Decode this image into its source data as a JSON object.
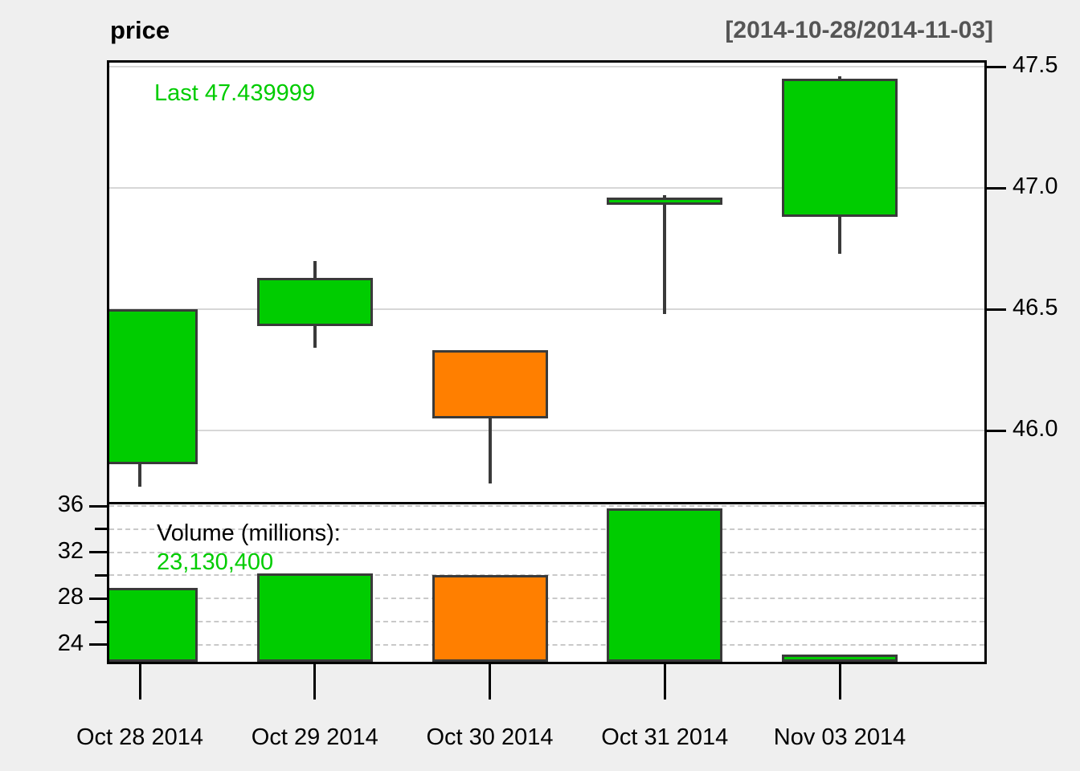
{
  "header": {
    "title": "price",
    "date_range": "[2014-10-28/2014-11-03]"
  },
  "annotations": {
    "last_price_label": "Last 47.439999",
    "volume_label": "Volume (millions):",
    "volume_value": "23,130,400"
  },
  "chart_data": {
    "type": "candlestick_with_volume",
    "title": "price",
    "date_range_label": "[2014-10-28/2014-11-03]",
    "categories": [
      "Oct 28 2014",
      "Oct 29 2014",
      "Oct 30 2014",
      "Oct 31 2014",
      "Nov 03 2014"
    ],
    "ohlc": [
      {
        "date": "Oct 28 2014",
        "open": 45.87,
        "high": 46.5,
        "low": 45.77,
        "close": 46.49
      },
      {
        "date": "Oct 29 2014",
        "open": 46.44,
        "high": 46.7,
        "low": 46.34,
        "close": 46.62
      },
      {
        "date": "Oct 30 2014",
        "open": 46.32,
        "high": 46.32,
        "low": 45.78,
        "close": 46.06
      },
      {
        "date": "Oct 31 2014",
        "open": 46.94,
        "high": 46.97,
        "low": 46.48,
        "close": 46.95
      },
      {
        "date": "Nov 03 2014",
        "open": 46.89,
        "high": 47.46,
        "low": 46.73,
        "close": 47.44
      }
    ],
    "volume_millions": [
      28.9,
      30.2,
      30.0,
      35.8,
      23.13
    ],
    "last_price": 47.439999,
    "last_volume": 23130400,
    "price_axis": {
      "side": "right",
      "ticks": [
        "47.5",
        "47.0",
        "46.5",
        "46.0"
      ],
      "range": [
        45.71,
        47.53
      ],
      "grid": "solid"
    },
    "volume_axis": {
      "side": "left",
      "major_ticks": [
        36,
        32,
        28,
        24
      ],
      "minor_ticks": [
        34,
        30,
        26
      ],
      "range": [
        22.3,
        36.2
      ],
      "grid": "dashed"
    },
    "colors": {
      "up": "#00cc00",
      "down": "#ff7f00",
      "candle_border": "#3a3a3a",
      "grid_solid": "#d7d7d7",
      "grid_dashed": "#c9c9c9",
      "background": "#efefef",
      "panel_background": "#ffffff",
      "annotation_green": "#00cc00",
      "range_text": "#555555"
    }
  }
}
